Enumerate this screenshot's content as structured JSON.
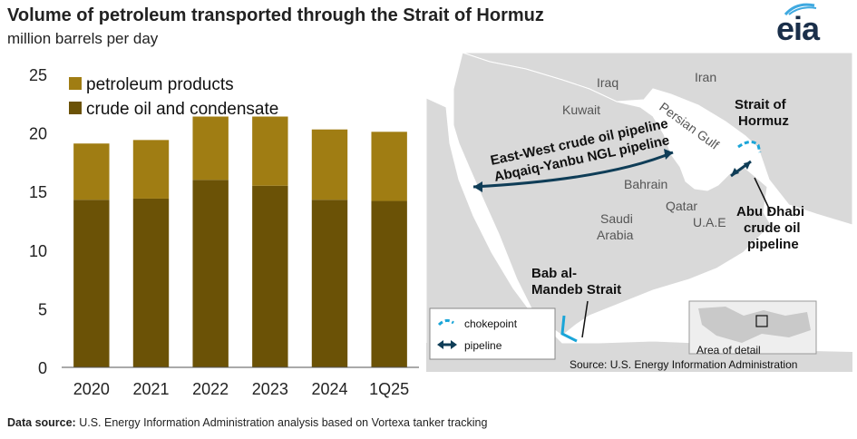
{
  "header": {
    "title": "Volume of petroleum transported through the Strait of Hormuz",
    "subtitle": "million barrels per day",
    "logo_text": "eia"
  },
  "colors": {
    "crude": "#6b5206",
    "products": "#a07d13",
    "map_land": "#d9d9d9",
    "map_water": "#ffffff",
    "pipeline": "#0f3d57",
    "chokepoint": "#1aa5d8"
  },
  "chart_data": {
    "type": "bar",
    "stacked": true,
    "categories": [
      "2020",
      "2021",
      "2022",
      "2023",
      "2024",
      "1Q25"
    ],
    "series": [
      {
        "name": "crude oil and condensate",
        "values": [
          14.3,
          14.4,
          16.0,
          15.5,
          14.3,
          14.2
        ]
      },
      {
        "name": "petroleum products",
        "values": [
          4.8,
          5.0,
          5.4,
          5.9,
          6.0,
          5.9
        ]
      }
    ],
    "ylim": [
      0,
      25
    ],
    "yticks": [
      0,
      5,
      10,
      15,
      20,
      25
    ],
    "legend_position": "top-left",
    "legend_order": [
      "petroleum products",
      "crude oil and condensate"
    ],
    "grid": false
  },
  "map": {
    "labels": {
      "iraq": "Iraq",
      "iran": "Iran",
      "kuwait": "Kuwait",
      "persian_gulf": "Persian Gulf",
      "bahrain": "Bahrain",
      "qatar": "Qatar",
      "uae": "U.A.E",
      "saudi_line1": "Saudi",
      "saudi_line2": "Arabia",
      "hormuz_line1": "Strait of",
      "hormuz_line2": "Hormuz",
      "ew_line1": "East-West crude oil pipeline",
      "ew_line2": "Abqaiq-Yanbu NGL pipeline",
      "ad_line1": "Abu Dhabi",
      "ad_line2": "crude oil",
      "ad_line3": "pipeline",
      "bab_line1": "Bab al-",
      "bab_line2": "Mandeb Strait",
      "inset_label": "Area of detail"
    },
    "legend": {
      "chokepoint": "chokepoint",
      "pipeline": "pipeline"
    },
    "source": "Source: U.S. Energy Information Administration"
  },
  "footer": {
    "source_label": "Data source:",
    "source_text": " U.S. Energy Information Administration analysis based on Vortexa tanker tracking"
  }
}
